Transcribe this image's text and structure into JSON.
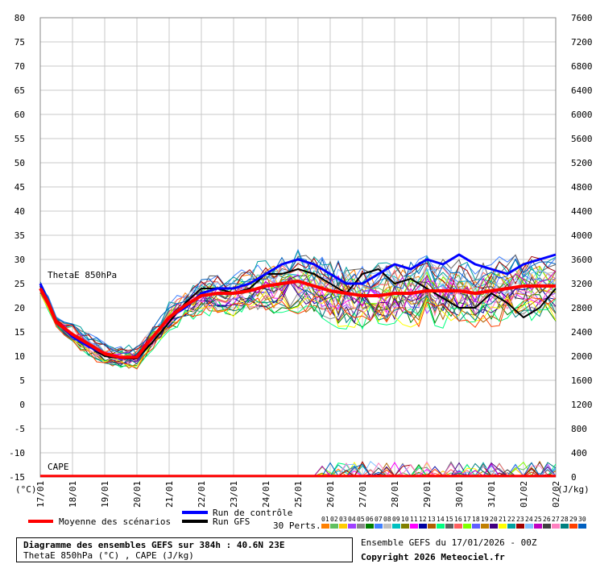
{
  "chart_data": {
    "type": "line",
    "title": "Diagramme des ensembles GEFS sur 384h : 40.6N 23E",
    "subtitle": "ThetaE 850hPa (°C) , CAPE (J/kg)",
    "left_axis": {
      "unit": "(°C)",
      "ylim": [
        -15,
        80
      ],
      "ticks": [
        80,
        75,
        70,
        65,
        60,
        55,
        50,
        45,
        40,
        35,
        30,
        25,
        20,
        15,
        10,
        5,
        0,
        -5,
        -10,
        -15
      ]
    },
    "right_axis": {
      "unit": "(J/kg)",
      "ylim": [
        0,
        7600
      ],
      "ticks": [
        7600,
        7200,
        6800,
        6400,
        6000,
        5600,
        5200,
        4800,
        4400,
        4000,
        3600,
        3200,
        2800,
        2400,
        2000,
        1600,
        1200,
        800,
        400,
        0
      ]
    },
    "x_ticks": [
      "17/01",
      "18/01",
      "19/01",
      "20/01",
      "21/01",
      "22/01",
      "23/01",
      "24/01",
      "25/01",
      "26/01",
      "27/01",
      "28/01",
      "29/01",
      "30/01",
      "31/01",
      "01/02",
      "02/02"
    ],
    "x_range_days": [
      0,
      16
    ],
    "grid": true,
    "panel_labels": {
      "thetae": "ThetaE 850hPa",
      "cape": "CAPE"
    },
    "series": [
      {
        "name": "Moyenne des scénarios",
        "color": "#ff0000",
        "x": [
          0,
          0.25,
          0.5,
          1,
          1.5,
          2,
          2.5,
          3,
          3.25,
          3.5,
          4,
          4.5,
          5,
          5.5,
          6,
          6.5,
          7,
          7.5,
          8,
          8.5,
          9,
          9.5,
          10,
          10.5,
          11,
          11.5,
          12,
          12.5,
          13,
          13.5,
          14,
          14.5,
          15,
          15.5,
          16
        ],
        "values": [
          24,
          21,
          17,
          14.5,
          12.5,
          10.5,
          9.7,
          9.8,
          12,
          14,
          18,
          20.5,
          22.5,
          23,
          23,
          23.5,
          24.5,
          25,
          25.5,
          24.5,
          23.5,
          23,
          22.5,
          22.5,
          23,
          23,
          23.5,
          23.5,
          23.5,
          23,
          23.5,
          24,
          24.5,
          24.5,
          24.5
        ]
      },
      {
        "name": "Run de contrôle",
        "color": "#0000ff",
        "x": [
          0,
          0.5,
          1,
          1.5,
          2,
          2.5,
          3,
          3.5,
          4,
          4.5,
          5,
          5.5,
          6,
          6.5,
          7,
          7.5,
          8,
          8.5,
          9,
          9.5,
          10,
          10.5,
          11,
          11.5,
          12,
          12.5,
          13,
          13.5,
          14,
          14.5,
          15,
          15.5,
          16
        ],
        "values": [
          25,
          17,
          14,
          12,
          10.5,
          9.5,
          10,
          14,
          18,
          20,
          23,
          24,
          24,
          25,
          27,
          29,
          30,
          29,
          27,
          25,
          25,
          27,
          29,
          28,
          30,
          29,
          31,
          29,
          28,
          27,
          29,
          30,
          31
        ]
      },
      {
        "name": "Run GFS",
        "color": "#000000",
        "x": [
          0,
          0.5,
          1,
          1.5,
          2,
          2.5,
          3,
          3.5,
          4,
          4.5,
          5,
          5.5,
          6,
          6.5,
          7,
          7.5,
          8,
          8.5,
          9,
          9.5,
          10,
          10.5,
          11,
          11.5,
          12,
          12.5,
          13,
          13.5,
          14,
          14.5,
          15,
          15.5,
          16
        ],
        "values": [
          24.5,
          17,
          14,
          12,
          10,
          9.5,
          9.5,
          13,
          17,
          21,
          24,
          24,
          23,
          24,
          27,
          27,
          28,
          27,
          25,
          23,
          27,
          28,
          25,
          26,
          24,
          22,
          20,
          20,
          23,
          21,
          18,
          20,
          24
        ]
      }
    ],
    "perturbations_label": "30 Perts.",
    "perturbations": [
      "01",
      "02",
      "03",
      "04",
      "05",
      "06",
      "07",
      "08",
      "09",
      "10",
      "11",
      "12",
      "13",
      "14",
      "15",
      "16",
      "17",
      "18",
      "19",
      "20",
      "21",
      "22",
      "23",
      "24",
      "25",
      "26",
      "27",
      "28",
      "29",
      "30"
    ],
    "perturbation_colors": [
      "#ff8000",
      "#60c060",
      "#ffcc00",
      "#a040ff",
      "#888888",
      "#008000",
      "#4080ff",
      "#c0c0c0",
      "#00c0c0",
      "#808000",
      "#ff00ff",
      "#0000a0",
      "#b06000",
      "#00ff80",
      "#606060",
      "#ff6060",
      "#80ff00",
      "#6060ff",
      "#c08000",
      "#400080",
      "#ffff00",
      "#00a0a0",
      "#a00000",
      "#80c0ff",
      "#c000c0",
      "#404040",
      "#ff80c0",
      "#008080",
      "#ff4000",
      "#0060c0"
    ]
  },
  "legend": {
    "mean": "Moyenne des scénarios",
    "control": "Run de contrôle",
    "gfs": "Run GFS",
    "perts": "30 Perts."
  },
  "footer": {
    "title": "Diagramme des ensembles GEFS sur 384h : 40.6N 23E",
    "subtitle": "ThetaE 850hPa (°C) , CAPE (J/kg)",
    "ensemble": "Ensemble GEFS du 17/01/2026 - 00Z",
    "copyright": "Copyright 2026 Meteociel.fr"
  }
}
